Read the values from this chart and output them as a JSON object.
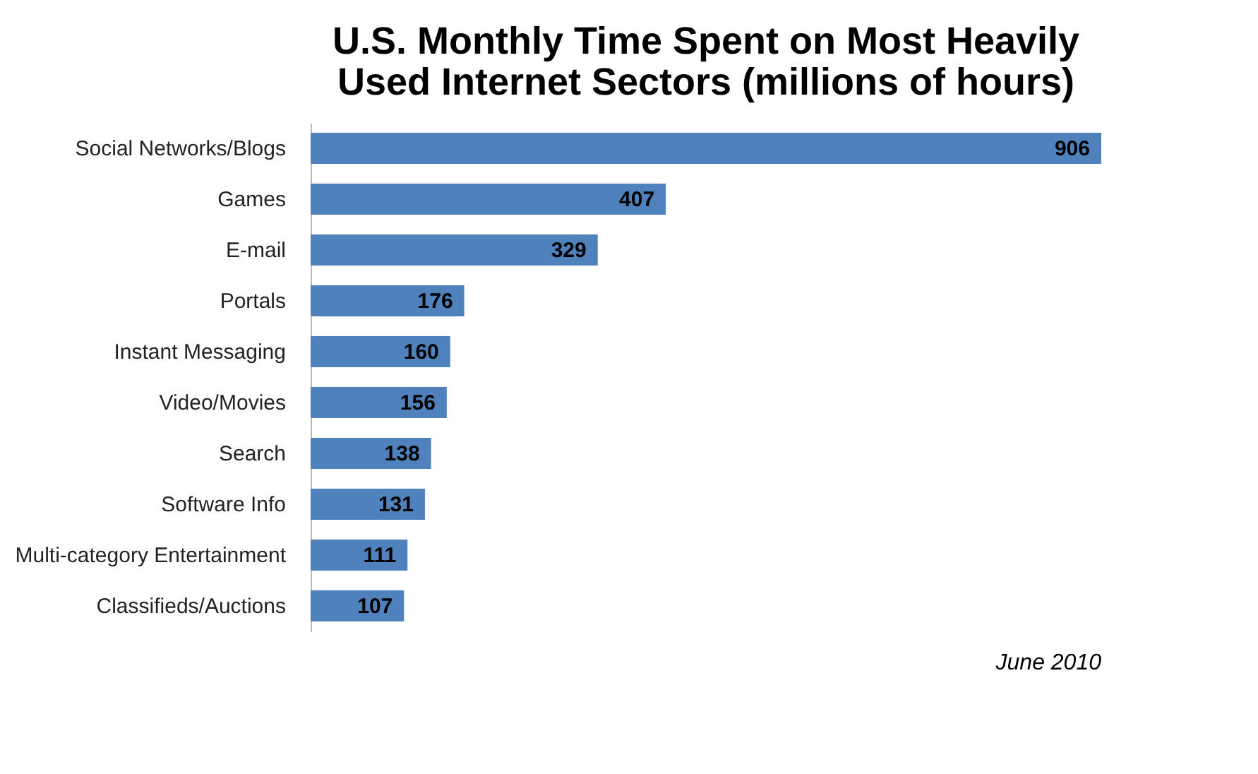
{
  "chart_data": {
    "type": "bar",
    "orientation": "horizontal",
    "title": "U.S. Monthly Time Spent on Most Heavily Used Internet Sectors (millions of hours)",
    "categories": [
      "Social Networks/Blogs",
      "Games",
      "E-mail",
      "Portals",
      "Instant Messaging",
      "Video/Movies",
      "Search",
      "Software Info",
      "Multi-category Entertainment",
      "Classifieds/Auctions"
    ],
    "values": [
      906,
      407,
      329,
      176,
      160,
      156,
      138,
      131,
      111,
      107
    ],
    "color": "#4f81bd",
    "data_labels": true,
    "annotations": [
      "June 2010"
    ]
  }
}
